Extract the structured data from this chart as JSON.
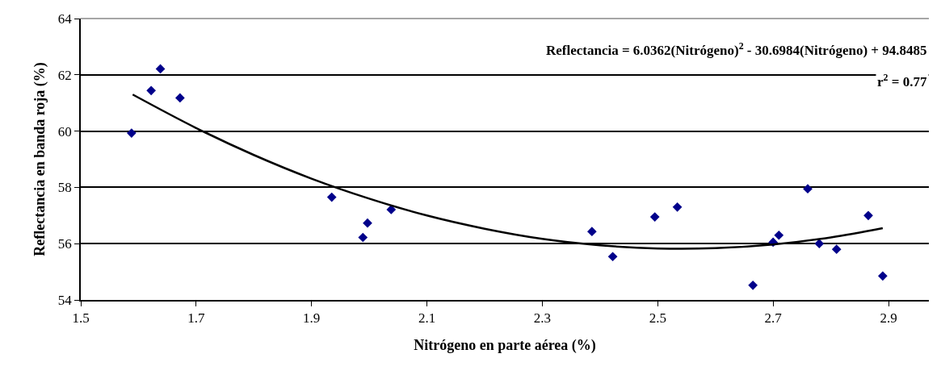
{
  "chart_data": {
    "type": "scatter",
    "xlabel": "Nitrógeno en parte aérea (%)",
    "ylabel": "Reflectancia en banda roja (%)",
    "annotations": [
      "Reflectancia = 6.0362(Nitrógeno)$^{2}$ - 30.6984(Nitrógeno) + 94.8485",
      "r$^{2}$ = 0.77"
    ],
    "xlim": [
      1.5,
      2.97
    ],
    "xticks": [
      1.5,
      1.7,
      1.9,
      2.1,
      2.3,
      2.5,
      2.7,
      2.9
    ],
    "ylim": [
      54,
      64
    ],
    "yticks": [
      54,
      56,
      58,
      60,
      62,
      64
    ],
    "grid": "y",
    "marker": "diamond",
    "series": [
      {
        "color": "#00008b",
        "x": [
          1.588,
          1.622,
          1.638,
          1.672,
          1.935,
          1.989,
          1.997,
          2.038,
          2.386,
          2.422,
          2.495,
          2.534,
          2.665,
          2.7,
          2.71,
          2.76,
          2.78,
          2.81,
          2.865,
          2.89
        ],
        "values": [
          59.93,
          61.44,
          62.21,
          61.18,
          57.65,
          56.22,
          56.73,
          57.21,
          56.43,
          55.54,
          56.95,
          57.3,
          54.52,
          56.05,
          56.3,
          57.95,
          56.0,
          55.8,
          57.0,
          54.85
        ]
      },
      {
        "type": "line",
        "color": "#000000",
        "marker": "none",
        "line_style": "solid",
        "x": [
          1.59,
          1.7,
          1.8,
          1.9,
          2.0,
          2.1,
          2.2,
          2.3,
          2.4,
          2.5,
          2.6,
          2.7,
          2.8,
          2.89
        ],
        "values": [
          61.3,
          60.11,
          59.15,
          58.31,
          57.6,
          57.0,
          56.53,
          56.17,
          55.94,
          55.83,
          55.84,
          55.97,
          56.22,
          56.55
        ]
      }
    ]
  }
}
